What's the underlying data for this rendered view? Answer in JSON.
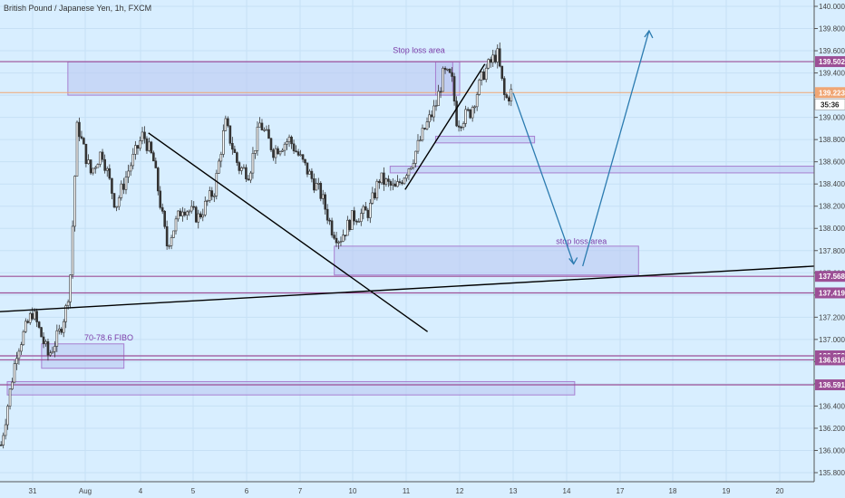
{
  "header": {
    "title": "British Pound / Japanese Yen, 1h, FXCM"
  },
  "chart_data": {
    "type": "candlestick",
    "symbol": "British Pound / Japanese Yen",
    "interval": "1h",
    "source": "FXCM",
    "y_axis": {
      "range": [
        135.7,
        140.05
      ],
      "ticks": [
        "140.000",
        "139.800",
        "139.600",
        "139.400",
        "139.200",
        "139.000",
        "138.800",
        "138.600",
        "138.400",
        "138.200",
        "138.000",
        "137.800",
        "137.600",
        "137.400",
        "137.200",
        "137.000",
        "136.800",
        "136.600",
        "136.400",
        "136.200",
        "136.000",
        "135.800"
      ]
    },
    "x_axis": {
      "ticks": [
        {
          "label": "31",
          "day": 0
        },
        {
          "label": "Aug",
          "day": 1
        },
        {
          "label": "4",
          "day": 2
        },
        {
          "label": "5",
          "day": 3
        },
        {
          "label": "6",
          "day": 4
        },
        {
          "label": "7",
          "day": 5
        },
        {
          "label": "10",
          "day": 6
        },
        {
          "label": "11",
          "day": 7
        },
        {
          "label": "12",
          "day": 8
        },
        {
          "label": "13",
          "day": 9
        },
        {
          "label": "14",
          "day": 10
        },
        {
          "label": "17",
          "day": 11
        },
        {
          "label": "18",
          "day": 12
        },
        {
          "label": "19",
          "day": 13
        },
        {
          "label": "20",
          "day": 14
        }
      ]
    },
    "price_path": [
      {
        "day": -0.6,
        "price": 136.05
      },
      {
        "day": -0.3,
        "price": 136.9
      },
      {
        "day": 0.0,
        "price": 137.25
      },
      {
        "day": 0.3,
        "price": 136.85
      },
      {
        "day": 0.5,
        "price": 137.05
      },
      {
        "day": 0.65,
        "price": 137.3
      },
      {
        "day": 0.72,
        "price": 137.6
      },
      {
        "day": 0.8,
        "price": 138.45
      },
      {
        "day": 0.85,
        "price": 138.95
      },
      {
        "day": 0.95,
        "price": 138.75
      },
      {
        "day": 1.1,
        "price": 138.5
      },
      {
        "day": 1.3,
        "price": 138.7
      },
      {
        "day": 1.55,
        "price": 138.2
      },
      {
        "day": 1.8,
        "price": 138.55
      },
      {
        "day": 2.05,
        "price": 138.85
      },
      {
        "day": 2.25,
        "price": 138.6
      },
      {
        "day": 2.5,
        "price": 137.85
      },
      {
        "day": 2.8,
        "price": 138.2
      },
      {
        "day": 3.1,
        "price": 138.1
      },
      {
        "day": 3.4,
        "price": 138.35
      },
      {
        "day": 3.6,
        "price": 138.95
      },
      {
        "day": 3.85,
        "price": 138.55
      },
      {
        "day": 4.05,
        "price": 138.5
      },
      {
        "day": 4.25,
        "price": 138.95
      },
      {
        "day": 4.5,
        "price": 138.7
      },
      {
        "day": 4.8,
        "price": 138.8
      },
      {
        "day": 5.1,
        "price": 138.55
      },
      {
        "day": 5.4,
        "price": 138.3
      },
      {
        "day": 5.6,
        "price": 138.0
      },
      {
        "day": 5.75,
        "price": 137.9
      },
      {
        "day": 6.0,
        "price": 138.1
      },
      {
        "day": 6.3,
        "price": 138.15
      },
      {
        "day": 6.5,
        "price": 138.45
      },
      {
        "day": 6.8,
        "price": 138.35
      },
      {
        "day": 7.1,
        "price": 138.6
      },
      {
        "day": 7.35,
        "price": 138.9
      },
      {
        "day": 7.55,
        "price": 139.1
      },
      {
        "day": 7.7,
        "price": 139.4
      },
      {
        "day": 7.85,
        "price": 139.35
      },
      {
        "day": 7.95,
        "price": 138.95
      },
      {
        "day": 8.2,
        "price": 139.05
      },
      {
        "day": 8.45,
        "price": 139.4
      },
      {
        "day": 8.7,
        "price": 139.58
      },
      {
        "day": 8.85,
        "price": 139.15
      },
      {
        "day": 9.0,
        "price": 139.25
      }
    ],
    "hlines": [
      {
        "price": 139.502,
        "label": "139.502",
        "color": "#9c4f96"
      },
      {
        "price": 139.223,
        "label": "139.223",
        "color": "#f0a674"
      },
      {
        "price": 137.568,
        "label": "137.568",
        "color": "#9c4f96"
      },
      {
        "price": 137.419,
        "label": "137.419",
        "color": "#9c4f96"
      },
      {
        "price": 136.852,
        "label": "136.852",
        "color": "#9c4f96"
      },
      {
        "price": 136.816,
        "label": "136.816",
        "color": "#9c4f96"
      },
      {
        "price": 136.591,
        "label": "136.591",
        "color": "#9c4f96"
      }
    ],
    "countdown": "35:36",
    "annotations": [
      {
        "text": "Stop loss area"
      },
      {
        "text": "stop loss area"
      },
      {
        "text": "70-78.6 FIBO"
      }
    ],
    "colors": {
      "background": "#d8eeff",
      "up": "#333333",
      "down": "#333333",
      "zone_fill": "#b9c6f0",
      "zone_stroke": "#a77fd0",
      "arrow": "#2b7bb0",
      "level": "#9c4f96"
    }
  }
}
